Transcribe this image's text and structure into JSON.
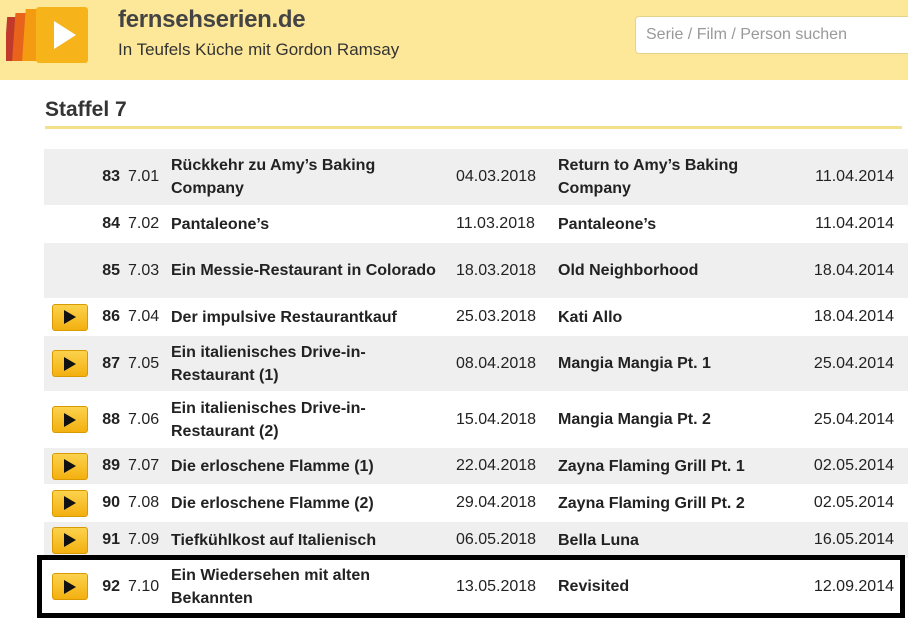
{
  "header": {
    "site_name": "fernsehserien.de",
    "series_name": "In Teufels Küche mit Gordon Ramsay",
    "search_placeholder": "Serie / Film / Person suchen",
    "brand_color": "#fde89a"
  },
  "season": {
    "title": "Staffel 7"
  },
  "episodes": [
    {
      "num": "83",
      "ep": "7.01",
      "title_de": "Rückkehr zu Amy’s Baking Company",
      "date_de": "04.03.2018",
      "title_en": "Return to Amy’s Baking Company",
      "date_en": "11.04.2014",
      "has_play": false
    },
    {
      "num": "84",
      "ep": "7.02",
      "title_de": "Pantaleone’s",
      "date_de": "11.03.2018",
      "title_en": "Pantaleone’s",
      "date_en": "11.04.2014",
      "has_play": false
    },
    {
      "num": "85",
      "ep": "7.03",
      "title_de": "Ein Messie-Restaurant in Colorado",
      "date_de": "18.03.2018",
      "title_en": "Old Neighborhood",
      "date_en": "18.04.2014",
      "has_play": false
    },
    {
      "num": "86",
      "ep": "7.04",
      "title_de": "Der impulsive Restaurantkauf",
      "date_de": "25.03.2018",
      "title_en": "Kati Allo",
      "date_en": "18.04.2014",
      "has_play": true
    },
    {
      "num": "87",
      "ep": "7.05",
      "title_de": "Ein italienisches Drive-in-Restaurant (1)",
      "date_de": "08.04.2018",
      "title_en": "Mangia Mangia Pt. 1",
      "date_en": "25.04.2014",
      "has_play": true
    },
    {
      "num": "88",
      "ep": "7.06",
      "title_de": "Ein italienisches Drive-in-Restaurant (2)",
      "date_de": "15.04.2018",
      "title_en": "Mangia Mangia Pt. 2",
      "date_en": "25.04.2014",
      "has_play": true
    },
    {
      "num": "89",
      "ep": "7.07",
      "title_de": "Die erloschene Flamme (1)",
      "date_de": "22.04.2018",
      "title_en": "Zayna Flaming Grill Pt. 1",
      "date_en": "02.05.2014",
      "has_play": true
    },
    {
      "num": "90",
      "ep": "7.08",
      "title_de": "Die erloschene Flamme (2)",
      "date_de": "29.04.2018",
      "title_en": "Zayna Flaming Grill Pt. 2",
      "date_en": "02.05.2014",
      "has_play": true
    },
    {
      "num": "91",
      "ep": "7.09",
      "title_de": "Tiefkühlkost auf Italienisch",
      "date_de": "06.05.2018",
      "title_en": "Bella Luna",
      "date_en": "16.05.2014",
      "has_play": true
    },
    {
      "num": "92",
      "ep": "7.10",
      "title_de": "Ein Wiedersehen mit alten Bekannten",
      "date_de": "13.05.2018",
      "title_en": "Revisited",
      "date_en": "12.09.2014",
      "has_play": true
    }
  ]
}
